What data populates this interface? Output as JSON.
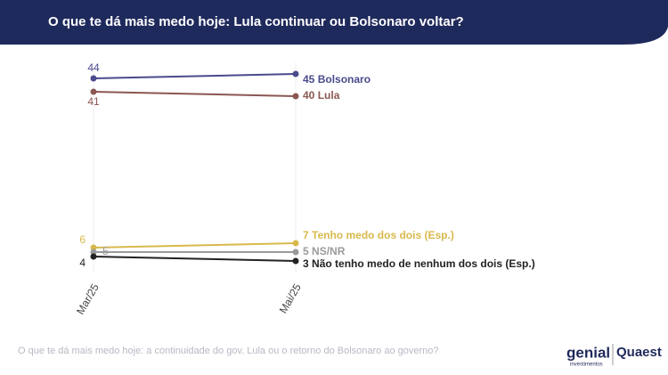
{
  "chart_data": {
    "type": "line",
    "title": "O que te dá mais medo hoje: Lula continuar ou Bolsonaro voltar?",
    "categories": [
      "Mar/25",
      "Mai/25"
    ],
    "series": [
      {
        "name": "Bolsonaro",
        "color": "#4a4a8c",
        "values": [
          44,
          45
        ]
      },
      {
        "name": "Lula",
        "color": "#8a5752",
        "values": [
          41,
          40
        ]
      },
      {
        "name": "Tenho medo dos dois (Esp.)",
        "color": "#d8b94c",
        "values": [
          6,
          7
        ]
      },
      {
        "name": "NS/NR",
        "color": "#9a9a9a",
        "values": [
          5,
          5
        ]
      },
      {
        "name": "Não tenho medo de nenhum dos dois (Esp.)",
        "color": "#222222",
        "values": [
          4,
          3
        ]
      }
    ],
    "ylim": [
      0,
      46
    ],
    "grid": true,
    "note": "O que te dá mais medo hoje: a continuidade do gov. Lula ou o retorno do Bolsonaro ao governo?"
  },
  "logo": {
    "brand": "genial",
    "sub": "investimentos",
    "partner": "Quaest"
  }
}
